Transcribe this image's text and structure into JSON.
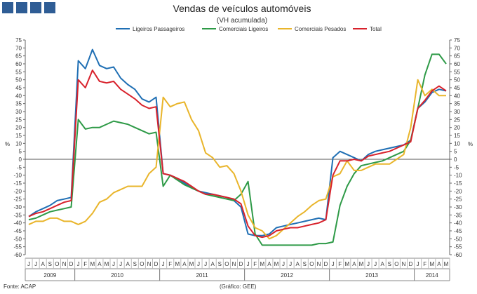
{
  "header": {
    "logo_squares": [
      "square-1",
      "square-2",
      "square-3",
      "square-4"
    ]
  },
  "footer": {
    "source": "Fonte: ACAP",
    "credit": "(Gráfico: GEE)"
  },
  "chart_data": {
    "type": "line",
    "title": "Vendas de veículos automóveis",
    "subtitle": "(VH acumulada)",
    "ylabel_left": "%",
    "ylabel_right": "%",
    "ylim": [
      -60,
      75
    ],
    "yticks": [
      75,
      70,
      65,
      60,
      55,
      50,
      45,
      40,
      35,
      30,
      25,
      20,
      15,
      10,
      5,
      0,
      -5,
      -10,
      -15,
      -20,
      -25,
      -30,
      -35,
      -40,
      -45,
      -50,
      -55,
      -60
    ],
    "months": [
      "J",
      "J",
      "A",
      "S",
      "O",
      "N",
      "D",
      "J",
      "F",
      "M",
      "A",
      "M",
      "J",
      "J",
      "A",
      "S",
      "O",
      "N",
      "D",
      "J",
      "F",
      "M",
      "A",
      "M",
      "J",
      "J",
      "A",
      "S",
      "O",
      "N",
      "D",
      "J",
      "F",
      "M",
      "A",
      "M",
      "J",
      "J",
      "A",
      "S",
      "O",
      "N",
      "D",
      "J",
      "F",
      "M",
      "A",
      "M",
      "J",
      "J",
      "A",
      "S",
      "O",
      "N",
      "D",
      "J",
      "F",
      "M",
      "A",
      "M"
    ],
    "years": [
      {
        "label": "2009",
        "start": 0,
        "end": 6
      },
      {
        "label": "2010",
        "start": 7,
        "end": 18
      },
      {
        "label": "2011",
        "start": 19,
        "end": 30
      },
      {
        "label": "2012",
        "start": 31,
        "end": 42
      },
      {
        "label": "2013",
        "start": 43,
        "end": 54
      },
      {
        "label": "2014",
        "start": 55,
        "end": 59
      }
    ],
    "legend_position": "top-center",
    "series": [
      {
        "name": "Ligeiros Passageiros",
        "color": "#1f6fb4",
        "values": [
          -36,
          -33,
          -31,
          -29,
          -26,
          -25,
          -24,
          62,
          57,
          69,
          59,
          57,
          58,
          51,
          47,
          44,
          38,
          36,
          39,
          -9,
          -10,
          -12,
          -15,
          -18,
          -20,
          -21,
          -22,
          -23,
          -24,
          -26,
          -30,
          -47,
          -48,
          -48,
          -47,
          -43,
          -42,
          -41,
          -40,
          -39,
          -38,
          -37,
          -38,
          1,
          5,
          3,
          1,
          -1,
          3,
          5,
          6,
          7,
          8,
          9,
          12,
          32,
          36,
          42,
          44,
          43
        ]
      },
      {
        "name": "Comerciais Ligeiros",
        "color": "#2e9a47",
        "values": [
          -38,
          -37,
          -35,
          -33,
          -32,
          -31,
          -30,
          25,
          19,
          20,
          20,
          22,
          24,
          23,
          22,
          20,
          18,
          16,
          17,
          -17,
          -10,
          -13,
          -16,
          -18,
          -20,
          -22,
          -23,
          -24,
          -25,
          -26,
          -22,
          -14,
          -47,
          -54,
          -54,
          -54,
          -54,
          -54,
          -54,
          -54,
          -54,
          -53,
          -53,
          -52,
          -29,
          -17,
          -9,
          -4,
          -3,
          -2,
          -1,
          1,
          3,
          5,
          12,
          32,
          53,
          66,
          66,
          60
        ]
      },
      {
        "name": "Comerciais Pesados",
        "color": "#e9b52b",
        "values": [
          -41,
          -39,
          -39,
          -37,
          -37,
          -39,
          -39,
          -41,
          -39,
          -34,
          -27,
          -25,
          -21,
          -19,
          -17,
          -17,
          -17,
          -9,
          -5,
          39,
          33,
          35,
          36,
          25,
          18,
          4,
          1,
          -5,
          -4,
          -9,
          -20,
          -35,
          -43,
          -45,
          -50,
          -48,
          -44,
          -40,
          -36,
          -33,
          -29,
          -26,
          -25,
          -11,
          -9,
          -1,
          -7,
          -7,
          -5,
          -3,
          -3,
          -3,
          0,
          3,
          20,
          50,
          40,
          44,
          40,
          40
        ]
      },
      {
        "name": "Total",
        "color": "#d8222c",
        "values": [
          -36,
          -34,
          -33,
          -31,
          -29,
          -27,
          -26,
          50,
          45,
          56,
          49,
          48,
          49,
          44,
          41,
          38,
          34,
          32,
          33,
          -9,
          -10,
          -12,
          -14,
          -17,
          -20,
          -22,
          -22,
          -23,
          -24,
          -25,
          -28,
          -42,
          -48,
          -49,
          -48,
          -45,
          -44,
          -43,
          -43,
          -42,
          -41,
          -40,
          -38,
          -10,
          -1,
          -1,
          0,
          -1,
          2,
          3,
          4,
          5,
          7,
          9,
          11,
          32,
          37,
          43,
          46,
          43
        ]
      }
    ]
  }
}
